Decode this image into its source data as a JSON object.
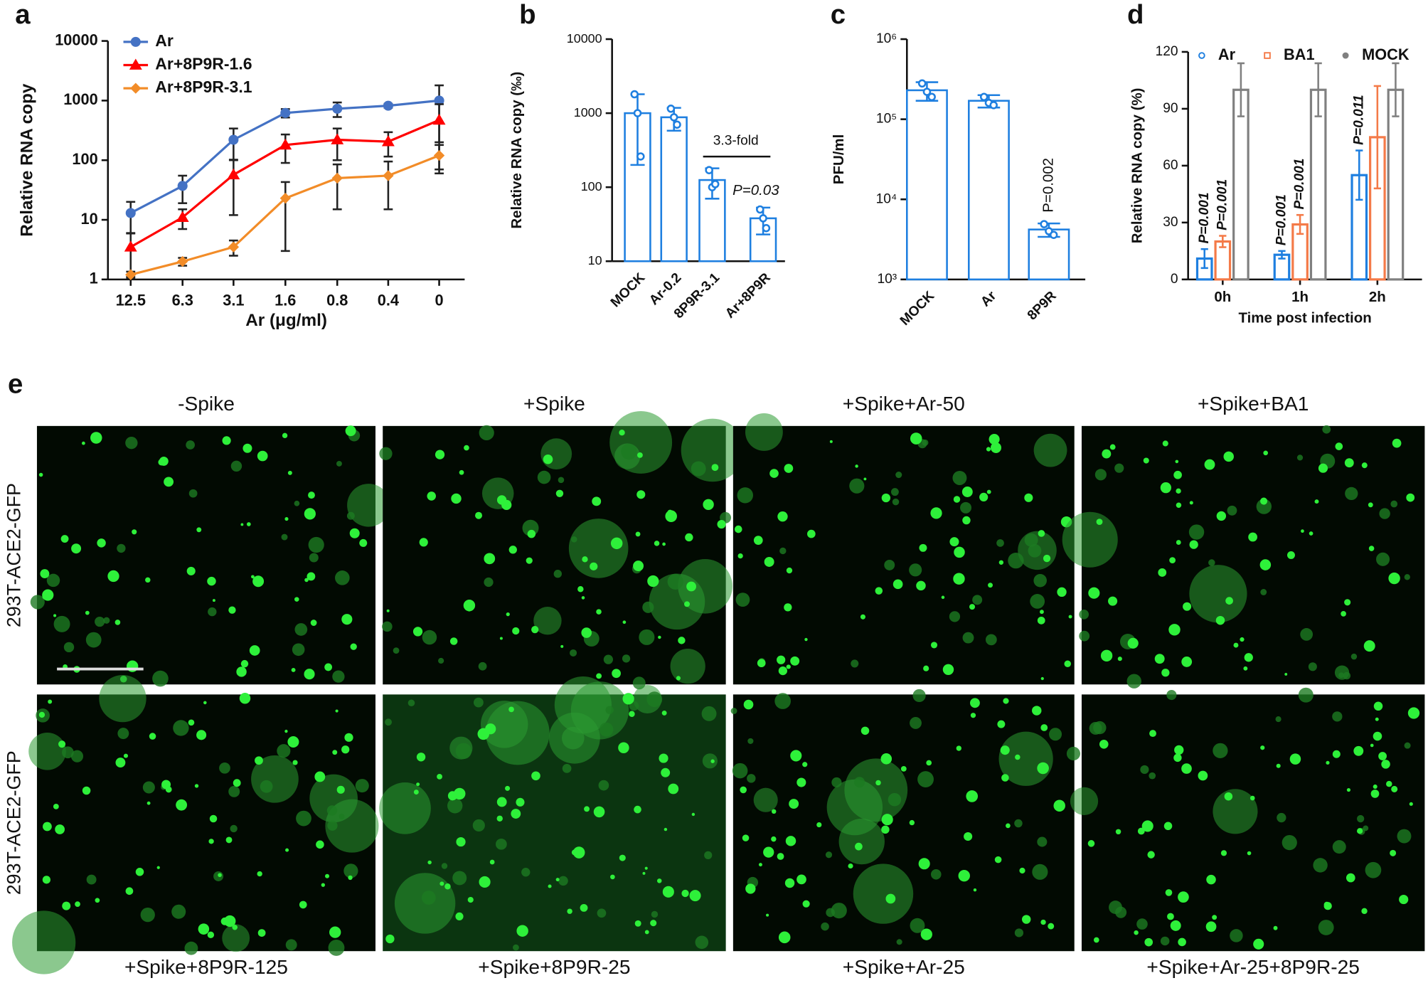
{
  "chart_data": [
    {
      "panel": "a",
      "type": "line",
      "categories": [
        "12.5",
        "6.3",
        "3.1",
        "1.6",
        "0.8",
        "0.4",
        "0"
      ],
      "xlabel": "Ar (μg/ml)",
      "ylabel": "Relative RNA copy",
      "log_y": true,
      "ylim": [
        1,
        10000
      ],
      "yticks": [
        1,
        10,
        100,
        1000,
        10000
      ],
      "legend": "upper left",
      "series": [
        {
          "name": "Ar",
          "color": "#4472c4",
          "marker": "circle",
          "values": [
            13,
            37,
            220,
            620,
            730,
            820,
            1000
          ],
          "errors": [
            7,
            18,
            120,
            100,
            200,
            60,
            800
          ]
        },
        {
          "name": "Ar+8P9R-1.6",
          "color": "#ff0000",
          "marker": "triangle",
          "values": [
            3.5,
            11,
            57,
            180,
            220,
            205,
            470
          ],
          "errors": [
            2.4,
            4,
            45,
            90,
            120,
            90,
            400
          ]
        },
        {
          "name": "Ar+8P9R-3.1",
          "color": "#f28c28",
          "marker": "diamond",
          "values": [
            1.2,
            2,
            3.5,
            23,
            50,
            55,
            120
          ],
          "errors": [
            0.15,
            0.3,
            1,
            20,
            35,
            40,
            60
          ]
        }
      ]
    },
    {
      "panel": "b",
      "type": "bar",
      "categories": [
        "MOCK",
        "Ar-0.2",
        "8P9R-3.1",
        "Ar+8P9R"
      ],
      "ylabel": "Relative RNA copy (‰)",
      "log_y": true,
      "ylim": [
        10,
        10000
      ],
      "yticks": [
        10,
        100,
        1000,
        10000
      ],
      "color": "#1e7fe0",
      "values": [
        1000,
        880,
        125,
        38
      ],
      "errors": [
        800,
        300,
        55,
        15
      ],
      "points": [
        [
          1800,
          1000,
          260
        ],
        [
          1150,
          880,
          700
        ],
        [
          170,
          100,
          110
        ],
        [
          50,
          38,
          28
        ]
      ],
      "annotations": [
        "3.3-fold",
        "P=0.03"
      ]
    },
    {
      "panel": "c",
      "type": "bar",
      "categories": [
        "MOCK",
        "Ar",
        "8P9R"
      ],
      "ylabel": "PFU/ml",
      "log_y": true,
      "ylim": [
        1000,
        1000000
      ],
      "yticks": [
        {
          "value": 1000,
          "label": "10³"
        },
        {
          "value": 10000,
          "label": "10⁴"
        },
        {
          "value": 100000,
          "label": "10⁵"
        },
        {
          "value": 1000000,
          "label": "10⁶"
        }
      ],
      "color": "#1e7fe0",
      "values": [
        230000,
        170000,
        4200
      ],
      "errors": [
        60000,
        30000,
        800
      ],
      "points": [
        [
          280000,
          220000,
          190000
        ],
        [
          190000,
          160000,
          150000
        ],
        [
          4900,
          4000,
          3600
        ]
      ],
      "annotations": [
        "P=0.002"
      ]
    },
    {
      "panel": "d",
      "type": "grouped_bar",
      "categories": [
        "0h",
        "1h",
        "2h"
      ],
      "xlabel": "Time post infection",
      "ylabel": "Relative RNA copy (%)",
      "log_y": false,
      "ylim": [
        0,
        120
      ],
      "yticks": [
        0,
        30,
        60,
        90,
        120
      ],
      "legend": "top",
      "series": [
        {
          "name": "Ar",
          "color": "#1e7fe0",
          "values": [
            11,
            13,
            55
          ],
          "errors": [
            5,
            2,
            13
          ]
        },
        {
          "name": "BA1",
          "color": "#f47a48",
          "values": [
            20,
            29,
            75
          ],
          "errors": [
            3,
            5,
            27
          ]
        },
        {
          "name": "MOCK",
          "color": "#808080",
          "values": [
            100,
            100,
            100
          ],
          "errors": [
            14,
            14,
            14
          ]
        }
      ],
      "annotations": [
        "P=0.001",
        "P=0.001",
        "P=0.001",
        "P=0.001",
        "P=0.011"
      ]
    }
  ],
  "figure_e": {
    "panel": "e",
    "row_labels": [
      "293T-ACE2-GFP",
      "293T-ACE2-GFP"
    ],
    "top_titles": [
      "-Spike",
      "+Spike",
      "+Spike+Ar-50",
      "+Spike+BA1"
    ],
    "bottom_titles": [
      "+Spike+8P9R-125",
      "+Spike+8P9R-25",
      "+Spike+Ar-25",
      "+Spike+Ar-25+8P9R-25"
    ]
  }
}
